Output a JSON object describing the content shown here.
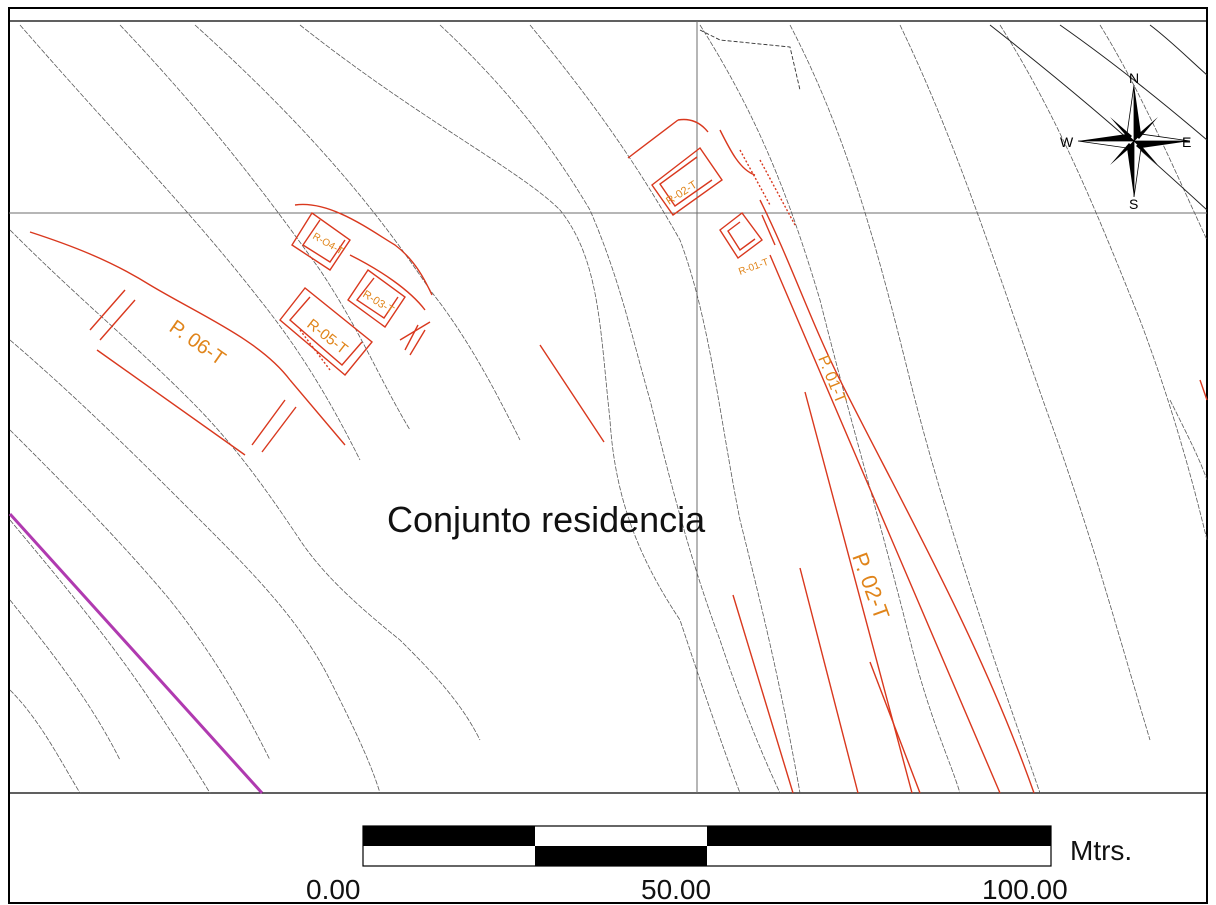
{
  "map": {
    "title": "Conjunto residencia",
    "labels": {
      "p01": "P. 01-T",
      "p02": "P. 02-T",
      "p06": "P. 06-T",
      "r01": "R-01-T",
      "r02": "R-02-T",
      "r03": "R-03-T",
      "r04": "R-O4-T",
      "r05": "R-05-T"
    },
    "compass": {
      "n": "N",
      "s": "S",
      "e": "E",
      "w": "W"
    },
    "scale": {
      "unit": "Mtrs.",
      "ticks": [
        "0.00",
        "50.00",
        "100.00"
      ]
    },
    "colors": {
      "structures": "#d9381e",
      "labels": "#e0841a",
      "contours": "#555555",
      "boundary": "#b03ab0",
      "grid": "#6e6e6e"
    }
  }
}
